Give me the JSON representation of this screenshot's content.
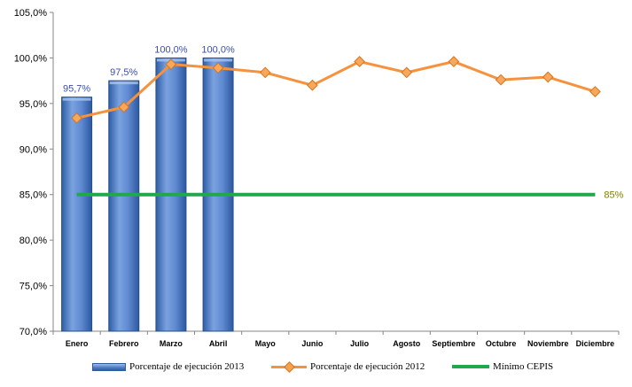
{
  "chart_data": {
    "type": "bar",
    "categories": [
      "Enero",
      "Febrero",
      "Marzo",
      "Abril",
      "Mayo",
      "Junio",
      "Julio",
      "Agosto",
      "Septiembre",
      "Octubre",
      "Noviembre",
      "Diciembre"
    ],
    "ylim": [
      70,
      105
    ],
    "yticks": [
      "70,0%",
      "75,0%",
      "80,0%",
      "85,0%",
      "90,0%",
      "95,0%",
      "100,0%",
      "105,0%"
    ],
    "series": [
      {
        "name": "Porcentaje de ejecución 2013",
        "type": "bar",
        "color": "#4a7bc4",
        "values": [
          95.7,
          97.5,
          100.0,
          100.0,
          null,
          null,
          null,
          null,
          null,
          null,
          null,
          null
        ],
        "labels": [
          "95,7%",
          "97,5%",
          "100,0%",
          "100,0%"
        ]
      },
      {
        "name": "Porcentaje de ejecución 2012",
        "type": "line",
        "color": "#f6923e",
        "values": [
          93.4,
          94.6,
          99.3,
          98.9,
          98.4,
          97.0,
          99.6,
          98.4,
          99.6,
          97.6,
          97.9,
          96.3
        ]
      },
      {
        "name": "Mínimo CEPIS",
        "type": "line",
        "color": "#1fa94c",
        "values": [
          85,
          85,
          85,
          85,
          85,
          85,
          85,
          85,
          85,
          85,
          85,
          85
        ],
        "end_label": "85%"
      }
    ],
    "grid": false,
    "legend_position": "bottom"
  }
}
